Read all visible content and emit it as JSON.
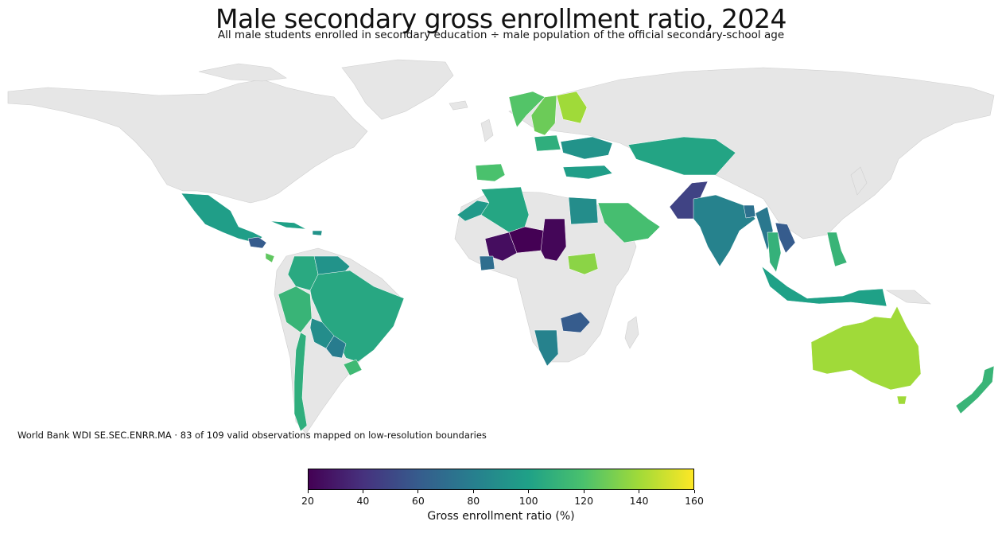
{
  "title": "Male secondary gross enrollment ratio, 2024",
  "subtitle": "All male students enrolled in secondary education ÷ male population of the official secondary-school age",
  "source_note": "World Bank WDI SE.SEC.ENRR.MA · 83 of 109 valid observations mapped on low-resolution boundaries",
  "colorbar": {
    "label": "Gross enrollment ratio (%)",
    "min": 20,
    "max": 160,
    "ticks": [
      "20",
      "40",
      "60",
      "80",
      "100",
      "120",
      "140",
      "160"
    ],
    "colormap": "viridis",
    "colors": [
      "#440154",
      "#46327e",
      "#365c8d",
      "#277f8e",
      "#1fa187",
      "#4ac16d",
      "#a0da39",
      "#fde725"
    ]
  },
  "map_style": {
    "no_data_color": "#e6e6e6",
    "border_color": "#cfcfcf"
  },
  "chart_data": {
    "type": "choropleth",
    "value_unit": "%",
    "regions": [
      {
        "name": "Mexico",
        "value": 98
      },
      {
        "name": "Guatemala",
        "value": 60
      },
      {
        "name": "Costa Rica",
        "value": 125
      },
      {
        "name": "Cuba",
        "value": 100
      },
      {
        "name": "Dominican Republic",
        "value": 92
      },
      {
        "name": "Colombia",
        "value": 105
      },
      {
        "name": "Venezuela",
        "value": 92
      },
      {
        "name": "Peru",
        "value": 112
      },
      {
        "name": "Brazil",
        "value": 104
      },
      {
        "name": "Bolivia",
        "value": 88
      },
      {
        "name": "Paraguay",
        "value": 78
      },
      {
        "name": "Chile",
        "value": 108
      },
      {
        "name": "Uruguay",
        "value": 115
      },
      {
        "name": "Spain",
        "value": 120
      },
      {
        "name": "Algeria",
        "value": 103
      },
      {
        "name": "Morocco",
        "value": 95
      },
      {
        "name": "Mali",
        "value": 25
      },
      {
        "name": "Niger",
        "value": 20
      },
      {
        "name": "Chad",
        "value": 22
      },
      {
        "name": "Ivory Coast",
        "value": 70
      },
      {
        "name": "Egypt",
        "value": 88
      },
      {
        "name": "Saudi Arabia",
        "value": 118
      },
      {
        "name": "South Sudan",
        "value": 135
      },
      {
        "name": "Zambia",
        "value": 60
      },
      {
        "name": "Namibia",
        "value": 82
      },
      {
        "name": "Sweden",
        "value": 128
      },
      {
        "name": "Finland",
        "value": 140
      },
      {
        "name": "Norway",
        "value": 122
      },
      {
        "name": "Poland",
        "value": 108
      },
      {
        "name": "Ukraine",
        "value": 92
      },
      {
        "name": "Turkey",
        "value": 98
      },
      {
        "name": "Kazakhstan",
        "value": 102
      },
      {
        "name": "Pakistan",
        "value": 48
      },
      {
        "name": "India",
        "value": 82
      },
      {
        "name": "Bangladesh",
        "value": 72
      },
      {
        "name": "Myanmar",
        "value": 76
      },
      {
        "name": "Laos",
        "value": 60
      },
      {
        "name": "Thailand",
        "value": 110
      },
      {
        "name": "Indonesia",
        "value": 100
      },
      {
        "name": "Philippines",
        "value": 112
      },
      {
        "name": "Australia",
        "value": 140
      },
      {
        "name": "New Zealand",
        "value": 112
      }
    ]
  }
}
